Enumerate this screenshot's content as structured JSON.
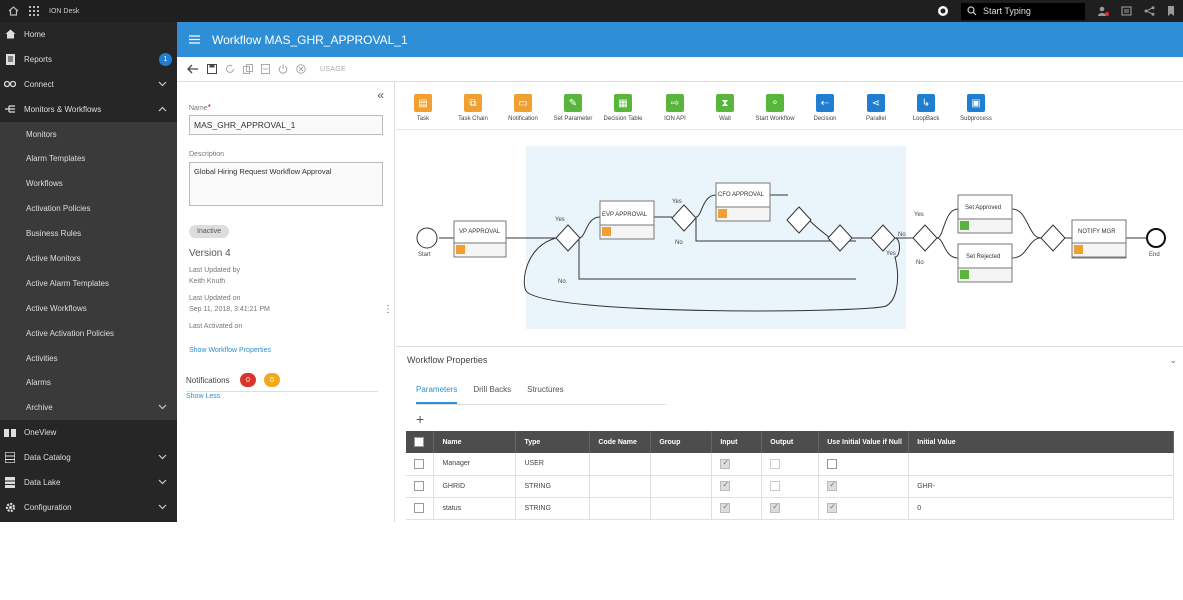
{
  "topbar": {
    "app_name": "ION Desk",
    "search_placeholder": "Start Typing"
  },
  "sidebar": {
    "items": [
      {
        "label": "Home",
        "icon": "home-icon"
      },
      {
        "label": "Reports",
        "icon": "reports-icon",
        "badge": "1"
      },
      {
        "label": "Connect",
        "icon": "connect-icon"
      },
      {
        "label": "Monitors & Workflows",
        "icon": "workflow-icon"
      },
      {
        "label": "Monitors"
      },
      {
        "label": "Alarm Templates"
      },
      {
        "label": "Workflows"
      },
      {
        "label": "Activation Policies"
      },
      {
        "label": "Business Rules"
      },
      {
        "label": "Active Monitors"
      },
      {
        "label": "Active Alarm Templates"
      },
      {
        "label": "Active Workflows"
      },
      {
        "label": "Active Activation Policies"
      },
      {
        "label": "Activities"
      },
      {
        "label": "Alarms"
      },
      {
        "label": "Archive"
      },
      {
        "label": "OneView",
        "icon": "oneview-icon"
      },
      {
        "label": "Data Catalog",
        "icon": "catalog-icon"
      },
      {
        "label": "Data Lake",
        "icon": "datalake-icon"
      },
      {
        "label": "Configuration",
        "icon": "gear-icon"
      }
    ]
  },
  "header": {
    "title": "Workflow MAS_GHR_APPROVAL_1"
  },
  "toolbar": {
    "usage_label": "USAGE"
  },
  "props": {
    "name_label": "Name",
    "name_value": "MAS_GHR_APPROVAL_1",
    "description_label": "Description",
    "description_value": "Global Hiring Request Workflow Approval",
    "status": "Inactive",
    "version": "Version 4",
    "last_updated_by_label": "Last Updated by",
    "last_updated_by": "Keith Knuth",
    "last_updated_on_label": "Last Updated on",
    "last_updated_on": "Sep 11, 2018, 3:41:21 PM",
    "last_activated_label": "Last Activated on",
    "show_props_link": "Show Workflow Properties",
    "notifications_label": "Notifications",
    "notif_red": "0",
    "notif_orange": "0",
    "show_less_link": "Show Less"
  },
  "palette": [
    {
      "label": "Task",
      "color": "#f0a030"
    },
    {
      "label": "Task Chain",
      "color": "#f0a030"
    },
    {
      "label": "Notification",
      "color": "#f0a030"
    },
    {
      "label": "Set Parameter",
      "color": "#59b53b"
    },
    {
      "label": "Decision Table",
      "color": "#59b53b"
    },
    {
      "label": "ION API",
      "color": "#59b53b"
    },
    {
      "label": "Wait",
      "color": "#59b53b"
    },
    {
      "label": "Start Workflow",
      "color": "#59b53b"
    },
    {
      "label": "Decision",
      "color": "#1f7ed0"
    },
    {
      "label": "Parallel",
      "color": "#1f7ed0"
    },
    {
      "label": "LoopBack",
      "color": "#1f7ed0"
    },
    {
      "label": "Subprocess",
      "color": "#1f7ed0"
    }
  ],
  "diagram": {
    "start": "Start",
    "end": "End",
    "vp": "VP APPROVAL",
    "evp": "EVP APPROVAL",
    "cfo": "CFO APPROVAL",
    "set_approved": "Set Approved",
    "set_rejected": "Set Rejected",
    "notify": "NOTIFY MGR",
    "yes": "Yes",
    "no": "No"
  },
  "wprops": {
    "title": "Workflow Properties",
    "tabs": [
      "Parameters",
      "Drill Backs",
      "Structures"
    ],
    "columns": [
      "Name",
      "Type",
      "Code Name",
      "Group",
      "Input",
      "Output",
      "Use Initial Value if Null",
      "Initial Value"
    ],
    "rows": [
      {
        "name": "Manager",
        "type": "USER",
        "input": true,
        "output": false,
        "use_init": false,
        "init": ""
      },
      {
        "name": "GHRID",
        "type": "STRING",
        "input": true,
        "output": false,
        "use_init": true,
        "init": "GHR-"
      },
      {
        "name": "status",
        "type": "STRING",
        "input": true,
        "output": true,
        "use_init": true,
        "init": "0"
      }
    ]
  }
}
